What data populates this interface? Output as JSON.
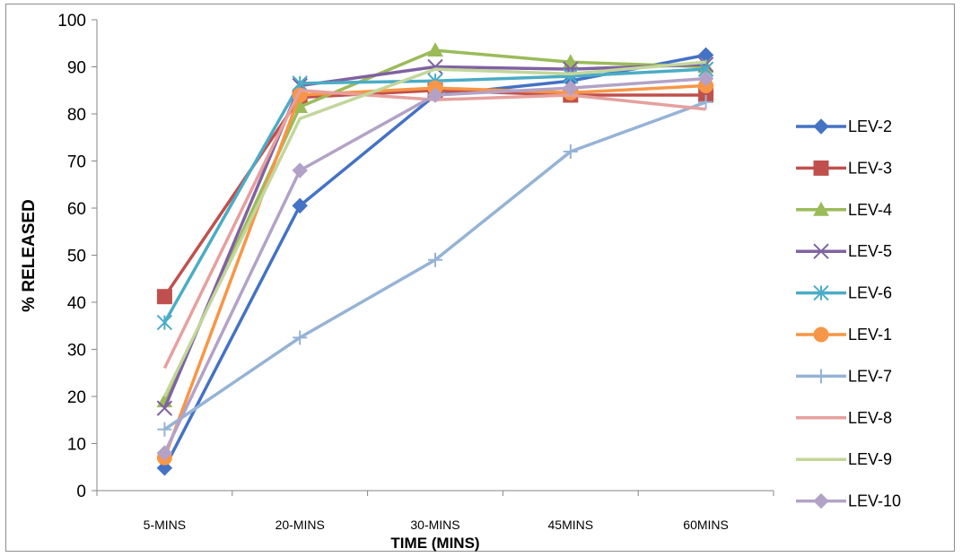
{
  "chart_data": {
    "type": "line",
    "categories": [
      "5-MINS",
      "20-MINS",
      "30-MINS",
      "45MINS",
      "60MINS"
    ],
    "xlabel": "TIME (MINS)",
    "ylabel": "% RELEASED",
    "ylim": [
      0,
      100
    ],
    "yticks": [
      0,
      10,
      20,
      30,
      40,
      50,
      60,
      70,
      80,
      90,
      100
    ],
    "grid": false,
    "legend_position": "right",
    "series": [
      {
        "name": "LEV-2",
        "color": "#4472C4",
        "marker": "diamond",
        "values": [
          4.8,
          60.5,
          84.0,
          87.0,
          92.5
        ]
      },
      {
        "name": "LEV-3",
        "color": "#C0504D",
        "marker": "square",
        "values": [
          41.2,
          83.5,
          85.0,
          84.0,
          84.0
        ]
      },
      {
        "name": "LEV-4",
        "color": "#9BBB59",
        "marker": "triangle",
        "values": [
          19.0,
          81.5,
          93.5,
          91.0,
          90.0
        ]
      },
      {
        "name": "LEV-5",
        "color": "#7F62A2",
        "marker": "x",
        "values": [
          17.5,
          86.0,
          90.0,
          89.5,
          90.5
        ]
      },
      {
        "name": "LEV-6",
        "color": "#4BACC6",
        "marker": "star",
        "values": [
          35.7,
          86.5,
          87.0,
          88.0,
          89.5
        ]
      },
      {
        "name": "LEV-1",
        "color": "#F79646",
        "marker": "circle",
        "values": [
          7.0,
          84.0,
          85.5,
          84.5,
          86.0
        ]
      },
      {
        "name": "LEV-7",
        "color": "#95B3D7",
        "marker": "plus",
        "values": [
          13.0,
          32.5,
          49.0,
          72.0,
          82.5
        ]
      },
      {
        "name": "LEV-8",
        "color": "#E6A09E",
        "marker": "none",
        "values": [
          26.0,
          85.0,
          83.0,
          84.0,
          81.0
        ]
      },
      {
        "name": "LEV-9",
        "color": "#C3D69B",
        "marker": "none",
        "values": [
          20.0,
          79.0,
          89.5,
          88.5,
          91.0
        ]
      },
      {
        "name": "LEV-10",
        "color": "#B3A2C7",
        "marker": "diamond",
        "values": [
          8.0,
          68.0,
          84.0,
          85.5,
          87.5
        ]
      }
    ]
  }
}
